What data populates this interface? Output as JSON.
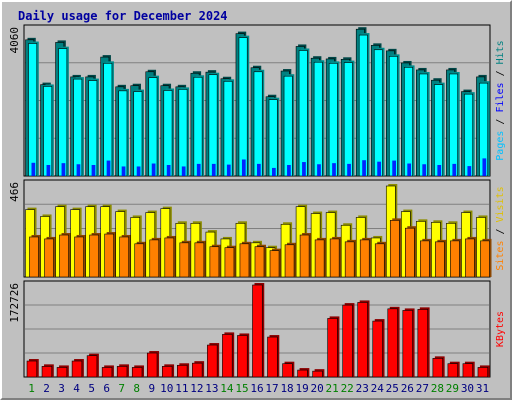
{
  "chart_data": [
    {
      "type": "bar",
      "title": "Daily usage for December 2024",
      "categories": [
        "1",
        "2",
        "3",
        "4",
        "5",
        "6",
        "7",
        "8",
        "9",
        "10",
        "11",
        "12",
        "13",
        "14",
        "15",
        "16",
        "17",
        "18",
        "19",
        "20",
        "21",
        "22",
        "23",
        "24",
        "25",
        "26",
        "27",
        "28",
        "29",
        "30",
        "31"
      ],
      "weekend_days": [
        "1",
        "7",
        "8",
        "14",
        "15",
        "21",
        "22",
        "28",
        "29"
      ],
      "ymax_label": "4060",
      "ylim": [
        0,
        4060
      ],
      "axis_label": [
        "Pages",
        "Files",
        "Hits"
      ],
      "series": [
        {
          "name": "Hits",
          "color": "#008080",
          "values": [
            3710,
            2490,
            3640,
            2700,
            2700,
            3240,
            2430,
            2460,
            2840,
            2460,
            2430,
            2800,
            2830,
            2650,
            3880,
            2950,
            2160,
            2860,
            3530,
            3210,
            3190,
            3180,
            4000,
            3560,
            3410,
            3080,
            2890,
            2610,
            2890,
            2300,
            2700
          ]
        },
        {
          "name": "Files",
          "color": "#00ffff",
          "values": [
            3610,
            2440,
            3470,
            2640,
            2600,
            3070,
            2320,
            2300,
            2680,
            2330,
            2360,
            2690,
            2760,
            2580,
            3770,
            2840,
            2080,
            2720,
            3420,
            3100,
            3070,
            3090,
            3840,
            3440,
            3260,
            2960,
            2780,
            2490,
            2780,
            2230,
            2530
          ]
        },
        {
          "name": "Pages",
          "color": "#0000ff",
          "values": [
            360,
            300,
            350,
            320,
            300,
            420,
            260,
            260,
            340,
            300,
            260,
            330,
            330,
            310,
            450,
            330,
            220,
            300,
            380,
            320,
            350,
            330,
            430,
            390,
            420,
            340,
            320,
            300,
            330,
            270,
            480
          ]
        }
      ]
    },
    {
      "type": "bar",
      "ymax_label": "466",
      "ylim": [
        0,
        466
      ],
      "axis_label": [
        "Sites",
        "Visits"
      ],
      "series": [
        {
          "name": "Visits",
          "color": "#ffff00",
          "values": [
            345,
            310,
            360,
            345,
            360,
            360,
            335,
            305,
            330,
            350,
            275,
            275,
            230,
            195,
            275,
            175,
            150,
            270,
            360,
            325,
            330,
            265,
            305,
            200,
            466,
            335,
            285,
            280,
            275,
            330,
            305
          ]
        },
        {
          "name": "Sites",
          "color": "#ff8000",
          "values": [
            205,
            195,
            215,
            205,
            215,
            220,
            205,
            170,
            190,
            200,
            175,
            175,
            155,
            150,
            170,
            155,
            135,
            165,
            215,
            190,
            195,
            180,
            190,
            170,
            290,
            250,
            185,
            180,
            185,
            195,
            185
          ]
        }
      ]
    },
    {
      "type": "bar",
      "ymax_label": "172726",
      "ylim": [
        0,
        172726
      ],
      "axis_label": [
        "KBytes"
      ],
      "series": [
        {
          "name": "KBytes",
          "color": "#ff0000",
          "values": [
            30000,
            20000,
            18000,
            30000,
            40000,
            18000,
            20000,
            18000,
            45000,
            20000,
            22000,
            26000,
            60000,
            80000,
            78000,
            172726,
            75000,
            25000,
            13000,
            11000,
            110000,
            135000,
            140000,
            105000,
            128000,
            125000,
            127000,
            35000,
            25000,
            25000,
            18000
          ]
        }
      ]
    }
  ]
}
